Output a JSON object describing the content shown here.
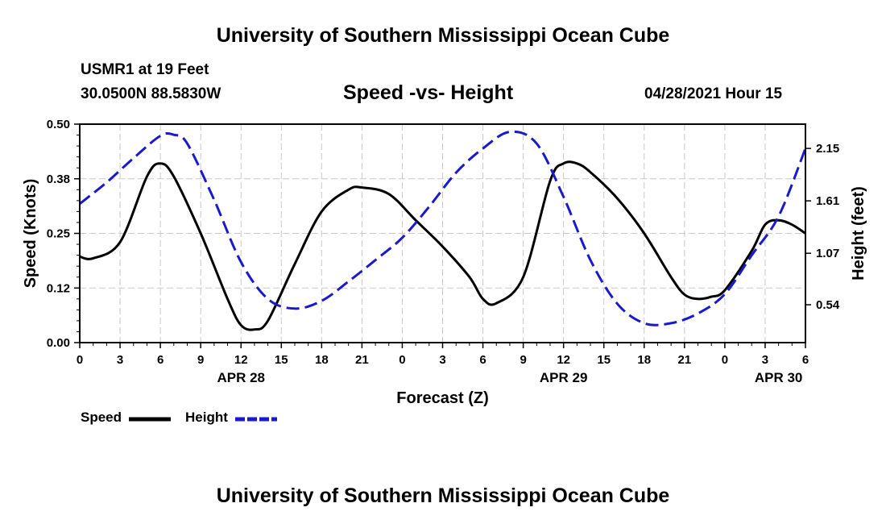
{
  "header": {
    "title_top": "University of Southern Mississippi Ocean Cube",
    "station": "USMR1 at 19 Feet",
    "coords": "30.0500N  88.5830W",
    "datetime": "04/28/2021 Hour 15",
    "title_bottom": "University of Southern Mississippi Ocean Cube"
  },
  "legend": {
    "speed_label": "Speed",
    "height_label": "Height"
  },
  "colors": {
    "speed": "#000000",
    "height": "#1a1acc",
    "grid": "#c8c8c8"
  },
  "chart_data": {
    "type": "line",
    "title": "Speed -vs- Height",
    "xlabel": "Forecast (Z)",
    "ylabel": "Speed (Knots)",
    "y2label": "Height (feet)",
    "xlim": [
      0,
      54
    ],
    "ylim": [
      0,
      0.5
    ],
    "y2lim": [
      0.15,
      2.4
    ],
    "x_ticks": [
      0,
      3,
      6,
      9,
      12,
      15,
      18,
      21,
      24,
      27,
      30,
      33,
      36,
      39,
      42,
      45,
      48,
      51,
      54
    ],
    "x_tick_labels": [
      "0",
      "3",
      "6",
      "9",
      "12",
      "15",
      "18",
      "21",
      "0",
      "3",
      "6",
      "9",
      "12",
      "15",
      "18",
      "21",
      "0",
      "3",
      "6"
    ],
    "date_labels": [
      {
        "x": 12,
        "label": "APR 28"
      },
      {
        "x": 36,
        "label": "APR 29"
      },
      {
        "x": 52,
        "label": "APR 30"
      }
    ],
    "y_ticks": [
      0.0,
      0.125,
      0.25,
      0.375,
      0.5
    ],
    "y_tick_labels": [
      "0.00",
      "0.12",
      "0.25",
      "0.38",
      "0.50"
    ],
    "y2_ticks": [
      0.54,
      1.07,
      1.61,
      2.15
    ],
    "y2_tick_labels": [
      "0.54",
      "1.07",
      "1.61",
      "2.15"
    ],
    "series": [
      {
        "name": "Speed",
        "axis": "left",
        "x": [
          0,
          1,
          3,
          5,
          6,
          7,
          9,
          11,
          12,
          13,
          14,
          16,
          18,
          20,
          21,
          23,
          25,
          27,
          29,
          30,
          31,
          33,
          35,
          36,
          37,
          38,
          40,
          42,
          44,
          45,
          46,
          47,
          48,
          50,
          51,
          52,
          53,
          54
        ],
        "y": [
          0.197,
          0.193,
          0.23,
          0.38,
          0.41,
          0.38,
          0.25,
          0.1,
          0.04,
          0.03,
          0.05,
          0.18,
          0.3,
          0.35,
          0.355,
          0.34,
          0.28,
          0.22,
          0.15,
          0.1,
          0.09,
          0.15,
          0.37,
          0.41,
          0.41,
          0.39,
          0.33,
          0.25,
          0.15,
          0.11,
          0.1,
          0.105,
          0.12,
          0.21,
          0.27,
          0.28,
          0.27,
          0.25
        ]
      },
      {
        "name": "Height",
        "axis": "right",
        "x": [
          0,
          2,
          4,
          6,
          7,
          8,
          10,
          12,
          14,
          16,
          18,
          20,
          22,
          24,
          26,
          28,
          30,
          32,
          34,
          36,
          38,
          40,
          42,
          44,
          46,
          48,
          50,
          52,
          54
        ],
        "y": [
          1.58,
          1.8,
          2.05,
          2.28,
          2.29,
          2.2,
          1.62,
          0.98,
          0.6,
          0.5,
          0.58,
          0.78,
          1.0,
          1.23,
          1.55,
          1.9,
          2.15,
          2.32,
          2.2,
          1.65,
          1.0,
          0.55,
          0.35,
          0.35,
          0.45,
          0.65,
          1.05,
          1.45,
          2.15
        ]
      }
    ]
  }
}
